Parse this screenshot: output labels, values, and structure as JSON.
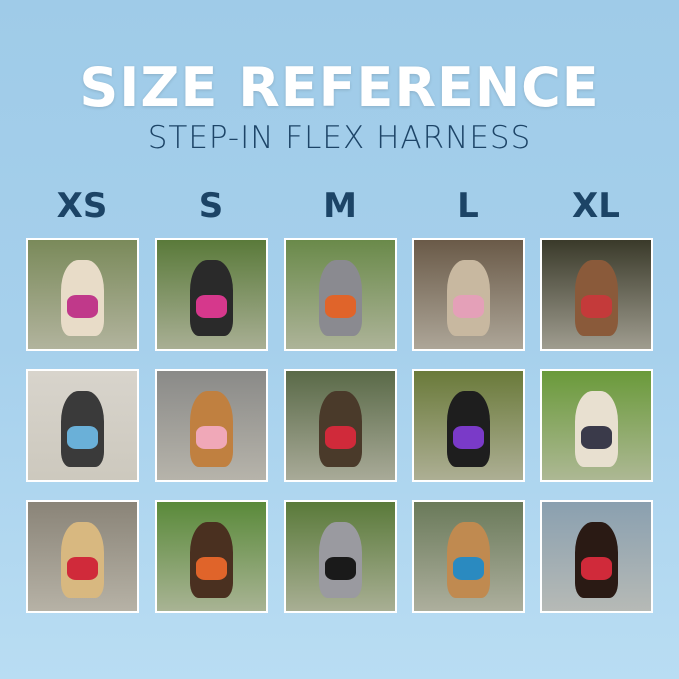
{
  "title": "SIZE REFERENCE",
  "subtitle": "STEP-IN FLEX HARNESS",
  "sizes": [
    "XS",
    "S",
    "M",
    "L",
    "XL"
  ],
  "photos": [
    [
      {
        "bg": "#7a8a5a",
        "dog": "#e8dcc8",
        "harness": "#c0398a"
      },
      {
        "bg": "#5a7a3a",
        "dog": "#2a2a2a",
        "harness": "#d6388c"
      },
      {
        "bg": "#6a8a4a",
        "dog": "#8a8a90",
        "harness": "#e0642a"
      },
      {
        "bg": "#6a5a48",
        "dog": "#c8b8a0",
        "harness": "#e4a0b8"
      },
      {
        "bg": "#3a3a2a",
        "dog": "#8a5a3a",
        "harness": "#c43a3a"
      }
    ],
    [
      {
        "bg": "#d8d4cc",
        "dog": "#3a3a3a",
        "harness": "#6ab0d8"
      },
      {
        "bg": "#8a8a88",
        "dog": "#c08040",
        "harness": "#f0a8b8"
      },
      {
        "bg": "#5a6a48",
        "dog": "#4a3a2a",
        "harness": "#d02a3a"
      },
      {
        "bg": "#6a7a3a",
        "dog": "#1e1e1e",
        "harness": "#7a3ac8"
      },
      {
        "bg": "#6a9a3a",
        "dog": "#e8e0d0",
        "harness": "#3a3a4a"
      }
    ],
    [
      {
        "bg": "#8a8478",
        "dog": "#d8b880",
        "harness": "#d02a3a"
      },
      {
        "bg": "#5a8a3a",
        "dog": "#4a3020",
        "harness": "#e0642a"
      },
      {
        "bg": "#5a7a3a",
        "dog": "#9a9aa0",
        "harness": "#1a1a1a"
      },
      {
        "bg": "#6a7a5a",
        "dog": "#c08a50",
        "harness": "#2a8ac0"
      },
      {
        "bg": "#8aa0b0",
        "dog": "#2a1a14",
        "harness": "#d02a3a"
      }
    ]
  ]
}
